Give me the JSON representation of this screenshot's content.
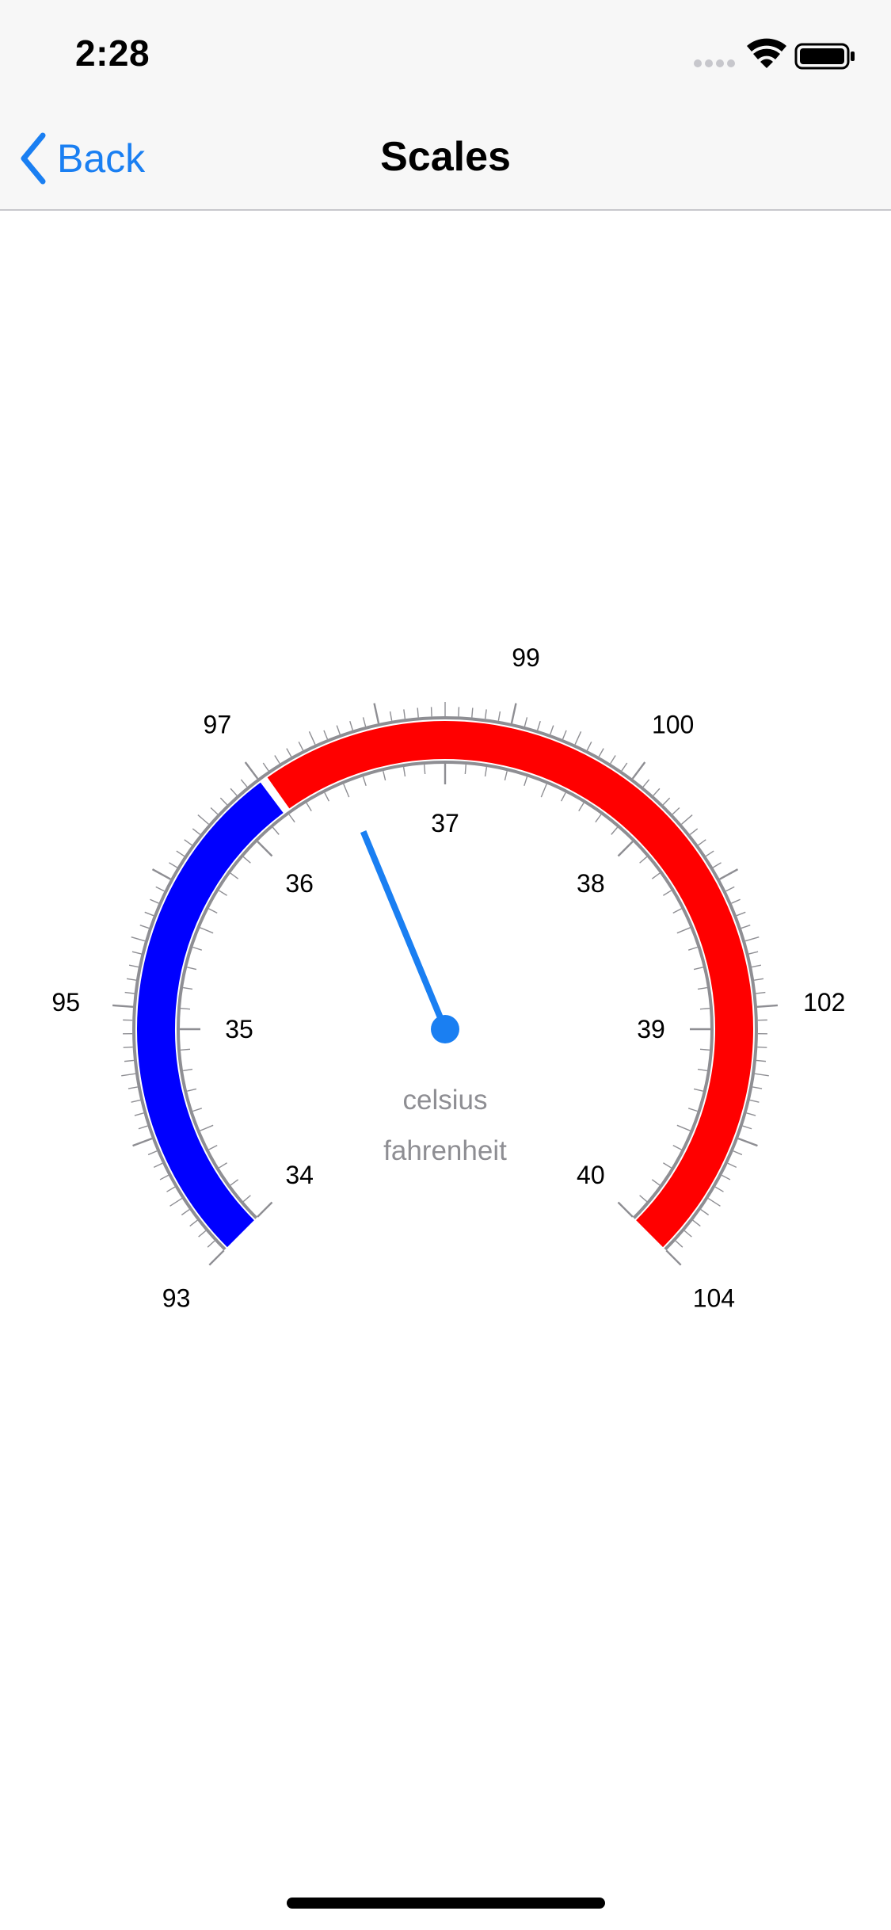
{
  "status_bar": {
    "time": "2:28",
    "icons": [
      "signal-dots-icon",
      "wifi-icon",
      "battery-icon"
    ]
  },
  "nav": {
    "back_label": "Back",
    "title": "Scales"
  },
  "gauge": {
    "caption_celsius": "celsius",
    "caption_fahrenheit": "fahrenheit",
    "sweep_degrees": [
      -135,
      135
    ],
    "outer_scale": {
      "unit": "fahrenheit",
      "min": 93,
      "max": 104,
      "labels": [
        "93",
        "95",
        "97",
        "99",
        "100",
        "102",
        "104"
      ]
    },
    "inner_scale": {
      "unit": "celsius",
      "min": 34,
      "max": 40,
      "labels": [
        "34",
        "35",
        "36",
        "37",
        "38",
        "39",
        "40"
      ]
    },
    "ranges": [
      {
        "name": "low",
        "from_f": 93,
        "to_f": 97,
        "color": "#0000ff"
      },
      {
        "name": "high",
        "from_f": 97,
        "to_f": 104,
        "color": "#ff0000"
      }
    ],
    "pointer_celsius": 36.5,
    "pointer_color": "#1a7ff2",
    "tick_color": "#8e8e93",
    "caption_color": "#8e8e93"
  },
  "colors": {
    "accent": "#1a7ff2",
    "bar_background": "#f7f7f7",
    "separator": "#c8c8cc"
  }
}
